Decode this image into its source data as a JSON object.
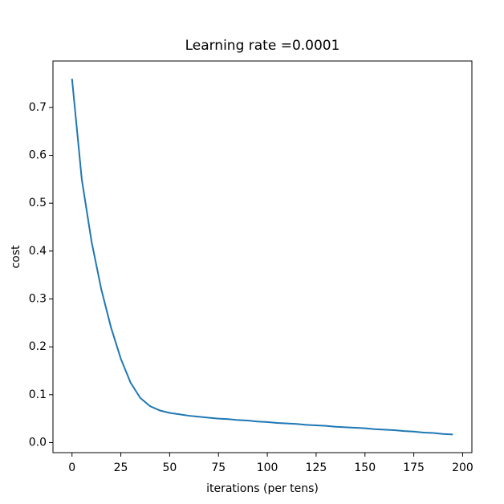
{
  "chart_data": {
    "type": "line",
    "title": "Learning rate =0.0001",
    "x_label": "iterations (per tens)",
    "y_label": "cost",
    "x": [
      0,
      5,
      10,
      15,
      20,
      25,
      30,
      35,
      40,
      45,
      50,
      55,
      60,
      65,
      70,
      75,
      80,
      85,
      90,
      95,
      100,
      105,
      110,
      115,
      120,
      125,
      130,
      135,
      140,
      145,
      150,
      155,
      160,
      165,
      170,
      175,
      180,
      185,
      190,
      195
    ],
    "series": [
      {
        "name": "cost",
        "color": "#1f77b4",
        "values": [
          0.76,
          0.55,
          0.42,
          0.32,
          0.24,
          0.175,
          0.125,
          0.093,
          0.076,
          0.067,
          0.062,
          0.059,
          0.056,
          0.054,
          0.052,
          0.05,
          0.049,
          0.047,
          0.046,
          0.044,
          0.043,
          0.041,
          0.04,
          0.039,
          0.037,
          0.036,
          0.035,
          0.033,
          0.032,
          0.031,
          0.03,
          0.028,
          0.027,
          0.026,
          0.024,
          0.023,
          0.021,
          0.02,
          0.018,
          0.017
        ]
      }
    ],
    "xlim": [
      -9.75,
      204.75
    ],
    "ylim": [
      -0.021,
      0.797
    ],
    "xticks": [
      0,
      25,
      50,
      75,
      100,
      125,
      150,
      175,
      200
    ],
    "yticks": [
      {
        "value": 0,
        "label": "0.0"
      },
      0.1,
      0.2,
      0.3,
      0.4,
      0.5,
      0.6,
      0.7
    ],
    "grid": false
  }
}
